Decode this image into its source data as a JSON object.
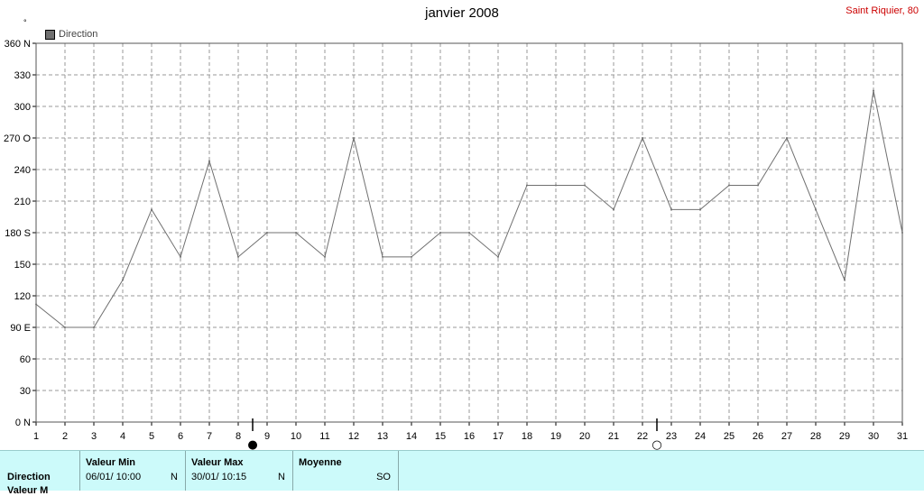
{
  "title": "janvier 2008",
  "location": "Saint Riquier, 80",
  "unit_symbol": "°",
  "legend_label": "Direction",
  "colors": {
    "series": "#707070",
    "grid": "#999999",
    "location": "#cc0000",
    "stats_bg": "#ccfafa"
  },
  "chart_data": {
    "type": "line",
    "title": "janvier 2008",
    "xlabel": "",
    "ylabel": "",
    "x": [
      1,
      2,
      3,
      4,
      5,
      6,
      7,
      8,
      9,
      10,
      11,
      12,
      13,
      14,
      15,
      16,
      17,
      18,
      19,
      20,
      21,
      22,
      23,
      24,
      25,
      26,
      27,
      28,
      29,
      30,
      31
    ],
    "y_ticks": [
      "0 N",
      "30",
      "60",
      "90  E",
      "120",
      "150",
      "180 S",
      "210",
      "240",
      "270 O",
      "300",
      "330",
      "360 N"
    ],
    "ylim": [
      0,
      360
    ],
    "grid": true,
    "legend_position": "top-left",
    "series": [
      {
        "name": "Direction",
        "values": [
          112,
          90,
          90,
          135,
          202,
          157,
          248,
          157,
          180,
          180,
          157,
          270,
          157,
          157,
          180,
          180,
          157,
          225,
          225,
          225,
          202,
          270,
          202,
          202,
          225,
          225,
          270,
          202,
          135,
          315,
          180
        ]
      }
    ],
    "markers": [
      {
        "x": 8.5,
        "symbol": "●"
      },
      {
        "x": 22.5,
        "symbol": "○"
      }
    ]
  },
  "stats": {
    "row_label": "Direction",
    "row_label_2": "Valeur M",
    "min": {
      "header": "Valeur Min",
      "value": "06/01/  10:00",
      "unit": "N"
    },
    "max": {
      "header": "Valeur Max",
      "value": "30/01/  10:15",
      "unit": "N"
    },
    "avg": {
      "header": "Moyenne",
      "value": "SO"
    }
  }
}
